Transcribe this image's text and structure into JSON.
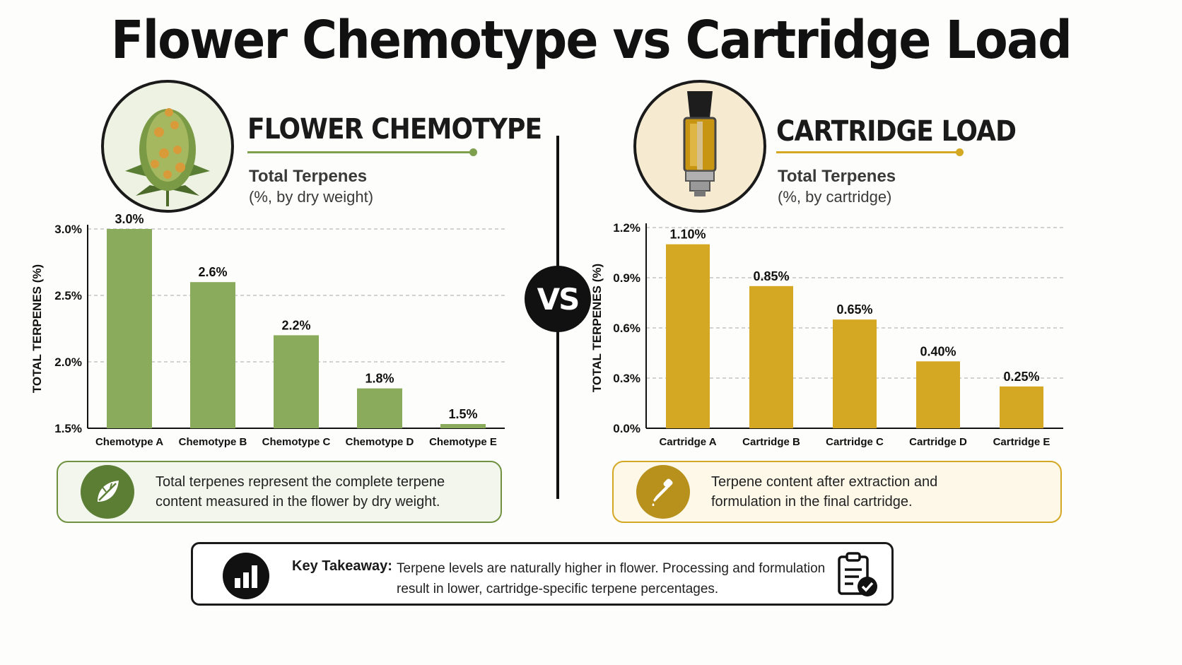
{
  "title": "Flower Chemotype vs Cartridge Load",
  "vs_label": "VS",
  "flower_panel": {
    "heading": "FLOWER CHEMOTYPE",
    "subtitle": "Total Terpenes",
    "subnote": "(%, by dry weight)",
    "note": "Total terpenes represent the complete terpene content measured in the flower by dry weight.",
    "icon": "leaf-icon",
    "accent": "#8aab5c"
  },
  "cartridge_panel": {
    "heading": "CARTRIDGE LOAD",
    "subtitle": "Total Terpenes",
    "subnote": "(%, by cartridge)",
    "note": "Terpene content after extraction and formulation in the final cartridge.",
    "icon": "dropper-icon",
    "accent": "#d4a823"
  },
  "takeaway": {
    "label": "Key Takeaway:",
    "text": "Terpene levels are naturally higher in flower. Processing and formulation result in lower, cartridge-specific terpene percentages.",
    "left_icon": "bar-chart-icon",
    "right_icon": "clipboard-check-icon"
  },
  "chart_data": [
    {
      "type": "bar",
      "ylabel": "TOTAL TERPENES (%)",
      "categories": [
        "Chemotype A",
        "Chemotype B",
        "Chemotype C",
        "Chemotype D",
        "Chemotype E"
      ],
      "values": [
        3.0,
        2.6,
        2.2,
        1.8,
        1.5
      ],
      "data_labels": [
        "3.0%",
        "2.6%",
        "2.2%",
        "1.8%",
        "1.5%"
      ],
      "ylim": [
        1.5,
        3.0
      ],
      "yticks": [
        1.5,
        2.0,
        2.5,
        3.0
      ],
      "ytick_labels": [
        "1.5%",
        "2.0%",
        "2.5%",
        "3.0%"
      ],
      "grid": true,
      "color": "#8aab5c"
    },
    {
      "type": "bar",
      "ylabel": "TOTAL TERPENES (%)",
      "categories": [
        "Cartridge A",
        "Cartridge B",
        "Cartridge C",
        "Cartridge D",
        "Cartridge E"
      ],
      "values": [
        1.1,
        0.85,
        0.65,
        0.4,
        0.25
      ],
      "data_labels": [
        "1.10%",
        "0.85%",
        "0.65%",
        "0.40%",
        "0.25%"
      ],
      "ylim": [
        0.0,
        1.2
      ],
      "yticks": [
        0.0,
        0.3,
        0.6,
        0.9,
        1.2
      ],
      "ytick_labels": [
        "0.0%",
        "0.3%",
        "0.6%",
        "0.9%",
        "1.2%"
      ],
      "grid": true,
      "color": "#d4a823"
    }
  ]
}
